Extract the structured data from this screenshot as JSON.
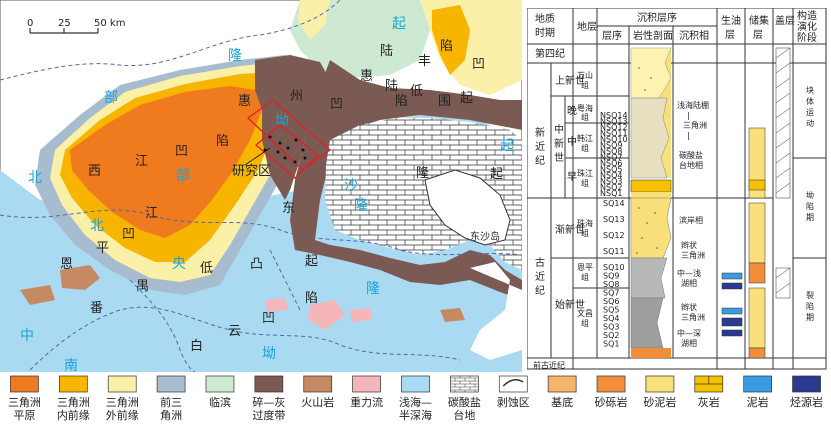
{
  "map": {
    "scale": {
      "zero": "0",
      "mid": "25",
      "end": "50 km"
    },
    "labels": {
      "qi1": "起",
      "long1": "隆",
      "bu": "部",
      "lu": "陆",
      "feng": "丰",
      "ao1": "凹",
      "xian1": "陷",
      "hui1": "惠",
      "lu2": "陆",
      "di": "低",
      "hui2": "惠",
      "zhou": "州",
      "ao2": "凹",
      "qi2": "起",
      "xian2": "陷",
      "xi": "西",
      "jiang": "江",
      "ao3": "凹",
      "bu2": "部",
      "jiang2": "江",
      "xian3": "陷",
      "zhao": "绍",
      "long2": "隆",
      "jiao": "坳",
      "yanjiuqu": "研究区",
      "dong": "东",
      "sha": "沙",
      "long3": "隆",
      "qi3": "起",
      "qi4": "起",
      "bei1": "北",
      "bei2": "北",
      "ao4": "凹",
      "ping": "平",
      "yang": "央",
      "di2": "低",
      "tu": "凸",
      "qi5": "起",
      "en": "恩",
      "fan": "番",
      "yu": "禺",
      "xian4": "陷",
      "long4": "隆",
      "ao5": "凹",
      "yun": "云",
      "bai": "白",
      "ao6": "坳",
      "zhong": "中",
      "nan": "南",
      "dongshadao": "东沙岛",
      "wei": "围",
      "bu3": "部"
    }
  },
  "column": {
    "headers": {
      "age": "地质\n时期",
      "formation": "地层",
      "sequence": "沉积层序",
      "seq_sub": "层序",
      "lith_sub": "岩性剖面",
      "facies_sub": "沉积相",
      "source": "生油\n层",
      "reservoir": "储集\n层",
      "seal": "盖层",
      "tectonic": "构造\n演化\n阶段"
    },
    "quaternary": "第四纪",
    "periods": [
      "新\n近\n纪",
      "古\n近\n纪"
    ],
    "epochs": [
      "上新世",
      "中\n新\n世",
      "渐新世",
      "始新世"
    ],
    "subepochs": [
      "晚",
      "中",
      "早"
    ],
    "formations": [
      "万山\n组",
      "粤海\n组",
      "韩江\n组",
      "珠江\n组",
      "珠海\n组",
      "恩平\n组",
      "文昌\n组"
    ],
    "pre_paleogene": "前古近纪",
    "sequences": [
      "NSQ14",
      "NSQ13",
      "NSQ12",
      "NSQ11",
      "NSQ10",
      "NSQ9",
      "NSQ8",
      "NSQ7",
      "NSQ6",
      "NSQ5",
      "NSQ4",
      "NSQ3",
      "NSQ2",
      "NSQ1",
      "SQ14",
      "SQ13",
      "SQ12",
      "SQ11",
      "SQ10",
      "SQ9",
      "SQ8",
      "SQ7",
      "SQ6",
      "SQ5",
      "SQ4",
      "SQ3",
      "SQ2",
      "SQ1"
    ],
    "facies": {
      "f1": "浅海陆棚",
      "f2": "三角洲",
      "f3": "碳酸盐\n台地相",
      "f4": "滨岸相",
      "f5": "辫状",
      "f6": "三角洲",
      "f7": "中—浅",
      "f8": "湖相",
      "f9": "辫状",
      "f10": "三角洲",
      "f11": "中—深",
      "f12": "湖相"
    },
    "tectonic_stages": [
      "块体运动",
      "坳陷期",
      "裂陷期"
    ]
  },
  "legend": [
    {
      "label": "三角洲\n平原",
      "color": "#f07a1e",
      "name": "delta-plain"
    },
    {
      "label": "三角洲\n内前缘",
      "color": "#f7b500",
      "name": "delta-inner-front"
    },
    {
      "label": "三角洲\n外前缘",
      "color": "#fbf0a8",
      "name": "delta-outer-front"
    },
    {
      "label": "前三\n角洲",
      "color": "#a8bccf",
      "name": "prodelta"
    },
    {
      "label": "临滨",
      "color": "#cde9d2",
      "name": "shoreface"
    },
    {
      "label": "碎—灰\n过度带",
      "color": "#7a5a52",
      "name": "transition-zone"
    },
    {
      "label": "火山岩",
      "color": "#c68a62",
      "name": "volcanic"
    },
    {
      "label": "重力流",
      "color": "#f4b6b8",
      "name": "gravity-flow"
    },
    {
      "label": "浅海—\n半深海",
      "color": "#a9daf2",
      "name": "shallow-sea"
    },
    {
      "label": "碳酸盐\n台地",
      "color": "#ffffff",
      "name": "carbonate-platform"
    },
    {
      "label": "剥蚀区",
      "color": "#ffffff",
      "name": "erosion-area"
    },
    {
      "label": "基底",
      "color": "#f6b36a",
      "name": "basement"
    },
    {
      "label": "砂砾岩",
      "color": "#f08e3a",
      "name": "conglomerate"
    },
    {
      "label": "砂泥岩",
      "color": "#f9e07a",
      "name": "sandy-mudstone"
    },
    {
      "label": "灰岩",
      "color": "#f5c200",
      "name": "limestone"
    },
    {
      "label": "泥岩",
      "color": "#3a9be0",
      "name": "mudstone"
    },
    {
      "label": "烃源岩",
      "color": "#2b3a8f",
      "name": "source-rock"
    }
  ]
}
